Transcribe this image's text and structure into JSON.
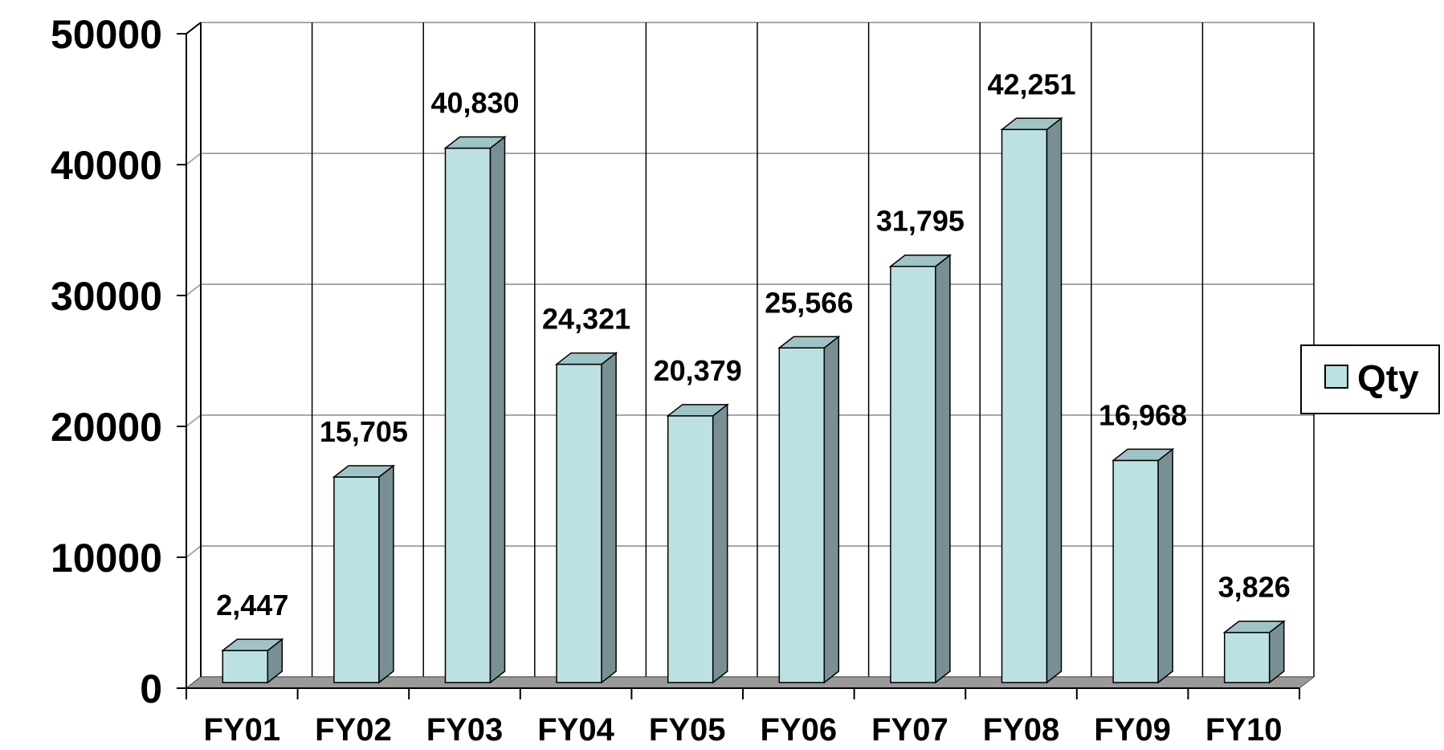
{
  "chart_data": {
    "type": "bar",
    "categories": [
      "FY01",
      "FY02",
      "FY03",
      "FY04",
      "FY05",
      "FY06",
      "FY07",
      "FY08",
      "FY09",
      "FY10"
    ],
    "series": [
      {
        "name": "Qty",
        "values": [
          2447,
          15705,
          40830,
          24321,
          20379,
          25566,
          31795,
          42251,
          16968,
          3826
        ],
        "labels": [
          "2,447",
          "15,705",
          "40,830",
          "24,321",
          "20,379",
          "25,566",
          "31,795",
          "42,251",
          "16,968",
          "3,826"
        ]
      }
    ],
    "yticks": [
      "0",
      "10000",
      "20000",
      "30000",
      "40000",
      "50000"
    ],
    "ylim": [
      0,
      50000
    ],
    "grid": true,
    "style": "3d-column",
    "legend_position": "right",
    "colors": {
      "bar_front": "#bce1e3",
      "bar_side": "#7a8f93",
      "bar_top": "#9fc4c7",
      "floor": "#9a9a9a",
      "gridline": "#a8a8a8",
      "outline": "#000000"
    }
  }
}
